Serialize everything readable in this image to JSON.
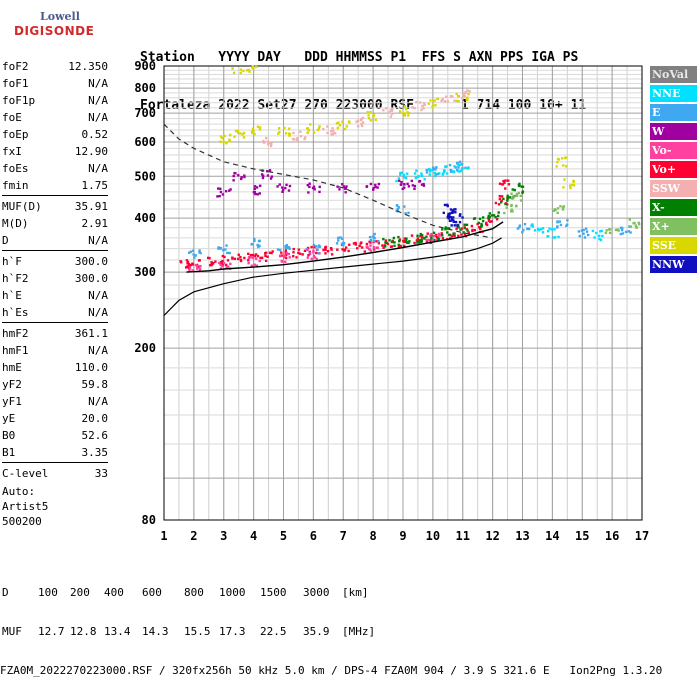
{
  "logo": {
    "top": "Lowell",
    "bottom": "DIGISONDE"
  },
  "header": {
    "line1": "Station   YYYY DAY   DDD HHMMSS P1  FFS S AXN PPS IGA PS",
    "line2": "Fortaleza 2022 Set27 270 223000 RSF      1 714 100 10+ 11"
  },
  "params_groups": [
    [
      {
        "name": "foF2",
        "value": "12.350"
      },
      {
        "name": "foF1",
        "value": "N/A"
      },
      {
        "name": "foF1p",
        "value": "N/A"
      },
      {
        "name": "foE",
        "value": "N/A"
      },
      {
        "name": "foEp",
        "value": "0.52"
      },
      {
        "name": "fxI",
        "value": "12.90"
      },
      {
        "name": "foEs",
        "value": "N/A"
      },
      {
        "name": "fmin",
        "value": "1.75"
      }
    ],
    [
      {
        "name": "MUF(D)",
        "value": "35.91"
      },
      {
        "name": "M(D)",
        "value": "2.91"
      },
      {
        "name": "D",
        "value": "N/A"
      }
    ],
    [
      {
        "name": "h`F",
        "value": "300.0"
      },
      {
        "name": "h`F2",
        "value": "300.0"
      },
      {
        "name": "h`E",
        "value": "N/A"
      },
      {
        "name": "h`Es",
        "value": "N/A"
      }
    ],
    [
      {
        "name": "hmF2",
        "value": "361.1"
      },
      {
        "name": "hmF1",
        "value": "N/A"
      },
      {
        "name": "hmE",
        "value": "110.0"
      },
      {
        "name": "yF2",
        "value": "59.8"
      },
      {
        "name": "yF1",
        "value": "N/A"
      },
      {
        "name": "yE",
        "value": "20.0"
      },
      {
        "name": "B0",
        "value": "52.6"
      },
      {
        "name": "B1",
        "value": "3.35"
      }
    ],
    [
      {
        "name": "C-level",
        "value": "33"
      }
    ]
  ],
  "auto": [
    "Auto:",
    "Artist5",
    "500200"
  ],
  "legend": [
    {
      "label": "NoVal",
      "color": "#808080",
      "text": "#e8e8e8"
    },
    {
      "label": "NNE",
      "color": "#00e0ff",
      "text": "#ffffff"
    },
    {
      "label": "E",
      "color": "#40a8f0",
      "text": "#ffffff"
    },
    {
      "label": "W",
      "color": "#a000a0",
      "text": "#ffffff"
    },
    {
      "label": "Vo-",
      "color": "#ff40a0",
      "text": "#ffffff"
    },
    {
      "label": "Vo+",
      "color": "#ff0030",
      "text": "#ffffff"
    },
    {
      "label": "SSW",
      "color": "#f4b0b0",
      "text": "#ffffff"
    },
    {
      "label": "X-",
      "color": "#008000",
      "text": "#ffffff"
    },
    {
      "label": "X+",
      "color": "#80c060",
      "text": "#ffffff"
    },
    {
      "label": "SSE",
      "color": "#d8d800",
      "text": "#ffffff"
    },
    {
      "label": "NNW",
      "color": "#1010c0",
      "text": "#ffffff"
    }
  ],
  "footer": {
    "line1_label": "D",
    "line1": [
      "100",
      "200",
      "400",
      "600",
      "800",
      "1000",
      "1500",
      "3000",
      "[km]"
    ],
    "line2_label": "MUF",
    "line2": [
      "12.7",
      "12.8",
      "13.4",
      "14.3",
      "15.5",
      "17.3",
      "22.5",
      "35.9",
      "[MHz]"
    ],
    "line3": "FZA0M_2022270223000.RSF / 320fx256h 50 kHz 5.0 km / DPS-4 FZA0M 904 / 3.9 S 321.6 E   Ion2Png 1.3.20"
  },
  "chart_data": {
    "type": "scatter",
    "title": "",
    "xlabel": "",
    "ylabel": "",
    "xlim": [
      1,
      17
    ],
    "ylim": [
      80,
      900
    ],
    "y_scale": "log",
    "x_ticks": [
      1,
      2,
      3,
      4,
      5,
      6,
      7,
      8,
      9,
      10,
      11,
      12,
      13,
      14,
      15,
      16,
      17
    ],
    "y_ticks": [
      80,
      200,
      300,
      400,
      500,
      600,
      700,
      800,
      900
    ],
    "grid": true,
    "legend_position": "right",
    "series": [
      {
        "name": "Vo+",
        "color": "#ff0030",
        "points": [
          [
            1.7,
            312
          ],
          [
            2.0,
            314
          ],
          [
            2.5,
            318
          ],
          [
            3.0,
            320
          ],
          [
            3.5,
            322
          ],
          [
            4.0,
            324
          ],
          [
            4.5,
            327
          ],
          [
            5.0,
            330
          ],
          [
            5.5,
            333
          ],
          [
            6.0,
            335
          ],
          [
            6.5,
            338
          ],
          [
            7.0,
            340
          ],
          [
            7.5,
            343
          ],
          [
            8.0,
            346
          ],
          [
            8.5,
            349
          ],
          [
            9.0,
            352
          ],
          [
            9.5,
            356
          ],
          [
            10.0,
            360
          ],
          [
            10.5,
            366
          ],
          [
            11.0,
            372
          ],
          [
            11.5,
            380
          ],
          [
            12.0,
            395
          ],
          [
            12.3,
            440
          ],
          [
            12.4,
            480
          ]
        ]
      },
      {
        "name": "X-",
        "color": "#008000",
        "points": [
          [
            8.5,
            352
          ],
          [
            9.0,
            356
          ],
          [
            9.5,
            360
          ],
          [
            10.0,
            365
          ],
          [
            10.5,
            372
          ],
          [
            11.0,
            380
          ],
          [
            11.5,
            392
          ],
          [
            12.0,
            408
          ],
          [
            12.5,
            440
          ],
          [
            12.8,
            470
          ]
        ]
      },
      {
        "name": "E",
        "color": "#40a8f0",
        "points": [
          [
            2.0,
            330
          ],
          [
            3.0,
            340
          ],
          [
            4.0,
            350
          ],
          [
            5.0,
            345
          ],
          [
            6.0,
            340
          ],
          [
            7.0,
            355
          ],
          [
            8.0,
            360
          ],
          [
            9.0,
            420
          ],
          [
            10.0,
            515
          ],
          [
            10.6,
            525
          ],
          [
            11.0,
            530
          ],
          [
            13.0,
            380
          ],
          [
            14.3,
            390
          ],
          [
            15.0,
            370
          ],
          [
            16.5,
            375
          ]
        ]
      },
      {
        "name": "W",
        "color": "#a000a0",
        "points": [
          [
            3.0,
            460
          ],
          [
            4.0,
            465
          ],
          [
            5.0,
            468
          ],
          [
            6.0,
            470
          ],
          [
            7.0,
            470
          ],
          [
            8.0,
            472
          ],
          [
            9.0,
            478
          ],
          [
            9.5,
            480
          ],
          [
            3.5,
            500
          ],
          [
            4.5,
            505
          ]
        ]
      },
      {
        "name": "SSE",
        "color": "#d8d800",
        "points": [
          [
            3.0,
            610
          ],
          [
            3.5,
            630
          ],
          [
            4.0,
            640
          ],
          [
            5.0,
            635
          ],
          [
            6.0,
            645
          ],
          [
            7.0,
            660
          ],
          [
            8.0,
            690
          ],
          [
            9.0,
            710
          ],
          [
            10.0,
            740
          ],
          [
            11.0,
            765
          ],
          [
            3.5,
            890
          ],
          [
            4.0,
            895
          ],
          [
            14.3,
            540
          ],
          [
            14.5,
            480
          ]
        ]
      },
      {
        "name": "SSW",
        "color": "#f4b0b0",
        "points": [
          [
            4.5,
            600
          ],
          [
            5.5,
            620
          ],
          [
            6.5,
            640
          ],
          [
            7.5,
            670
          ],
          [
            8.5,
            705
          ],
          [
            9.5,
            730
          ],
          [
            10.5,
            755
          ],
          [
            11.0,
            775
          ]
        ]
      },
      {
        "name": "NNE",
        "color": "#00e0ff",
        "points": [
          [
            9.0,
            500
          ],
          [
            9.5,
            505
          ],
          [
            10.0,
            512
          ],
          [
            10.5,
            518
          ],
          [
            11.0,
            525
          ],
          [
            13.5,
            380
          ],
          [
            14.0,
            370
          ],
          [
            15.5,
            365
          ]
        ]
      },
      {
        "name": "NNW",
        "color": "#1010c0",
        "points": [
          [
            10.6,
            410
          ],
          [
            10.7,
            400
          ],
          [
            10.5,
            420
          ],
          [
            10.8,
            395
          ]
        ]
      },
      {
        "name": "Vo-",
        "color": "#ff40a0",
        "points": [
          [
            2.0,
            305
          ],
          [
            3.0,
            312
          ],
          [
            4.0,
            318
          ],
          [
            5.0,
            325
          ],
          [
            6.0,
            330
          ],
          [
            8.0,
            342
          ],
          [
            10.0,
            360
          ]
        ]
      },
      {
        "name": "X+",
        "color": "#80c060",
        "points": [
          [
            12.6,
            420
          ],
          [
            12.8,
            450
          ],
          [
            14.2,
            420
          ],
          [
            16.0,
            370
          ],
          [
            16.8,
            390
          ]
        ]
      }
    ],
    "profile_line": [
      [
        1.75,
        300
      ],
      [
        2.5,
        302
      ],
      [
        3.0,
        305
      ],
      [
        4.0,
        308
      ],
      [
        5.0,
        312
      ],
      [
        6.0,
        318
      ],
      [
        7.0,
        325
      ],
      [
        8.0,
        333
      ],
      [
        9.0,
        342
      ],
      [
        10.0,
        352
      ],
      [
        11.0,
        362
      ],
      [
        11.5,
        370
      ],
      [
        12.0,
        378
      ],
      [
        12.35,
        392
      ]
    ],
    "lower_curve": [
      [
        1.0,
        238
      ],
      [
        1.5,
        258
      ],
      [
        2.0,
        270
      ],
      [
        3.0,
        282
      ],
      [
        4.0,
        292
      ],
      [
        5.0,
        298
      ],
      [
        6.0,
        303
      ],
      [
        7.0,
        308
      ],
      [
        8.0,
        313
      ],
      [
        9.0,
        318
      ],
      [
        10.0,
        325
      ],
      [
        11.0,
        333
      ],
      [
        11.5,
        340
      ],
      [
        12.0,
        350
      ],
      [
        12.3,
        360
      ]
    ],
    "muf_curve": [
      [
        1.0,
        660
      ],
      [
        1.5,
        610
      ],
      [
        2.0,
        580
      ],
      [
        3.0,
        540
      ],
      [
        4.0,
        520
      ],
      [
        5.0,
        505
      ],
      [
        6.0,
        490
      ],
      [
        7.0,
        470
      ],
      [
        8.0,
        440
      ],
      [
        9.0,
        410
      ],
      [
        10.0,
        385
      ],
      [
        11.0,
        370
      ],
      [
        12.0,
        360
      ]
    ]
  }
}
